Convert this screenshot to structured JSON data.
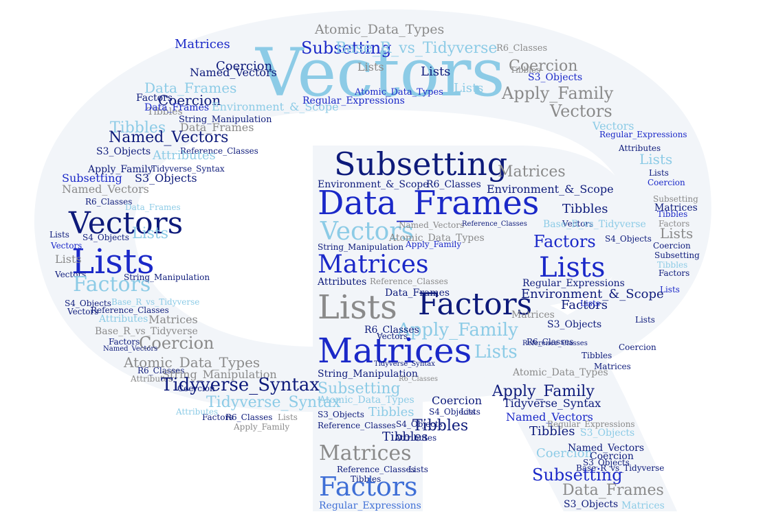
{
  "colors": {
    "shape_fill": "#f2f5f9",
    "navy": "#0d1a7a",
    "blue": "#1a28c8",
    "medium_blue": "#3f6fd6",
    "sky": "#8ccbe6",
    "light_sky": "#b3dcef",
    "gray": "#8a8a8a",
    "dark_gray": "#555555"
  },
  "words": {
    "vectors": "Vectors",
    "subsetting": "Subsetting",
    "data_frames": "Data_Frames",
    "lists": "Lists",
    "matrices": "Matrices",
    "factors": "Factors",
    "tibbles": "Tibbles",
    "coercion": "Coercion",
    "attributes": "Attributes",
    "named_vectors": "Named_Vectors",
    "atomic_data_types": "Atomic_Data_Types",
    "base_r_vs_tidyverse": "Base_R_vs_Tidyverse",
    "apply_family": "Apply_Family",
    "s3_objects": "S3_Objects",
    "s4_objects": "S4_Objects",
    "r6_classes": "R6_Classes",
    "reference_classes": "Reference_Classes",
    "string_manipulation": "String_Manipulation",
    "regular_expressions": "Regular_Expressions",
    "environment_scope": "Environment_&_Scope",
    "tidyverse_syntax": "Tidyverse_Syntax"
  }
}
